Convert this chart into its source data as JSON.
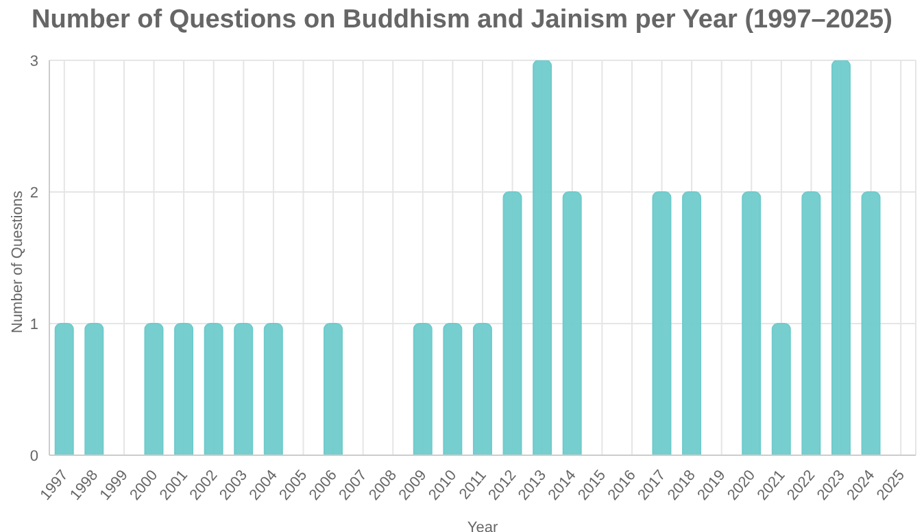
{
  "chart_data": {
    "type": "bar",
    "title": "Number of Questions on Buddhism and Jainism per Year (1997–2025)",
    "xlabel": "Year",
    "ylabel": "Number of Questions",
    "categories": [
      "1997",
      "1998",
      "1999",
      "2000",
      "2001",
      "2002",
      "2003",
      "2004",
      "2005",
      "2006",
      "2007",
      "2008",
      "2009",
      "2010",
      "2011",
      "2012",
      "2013",
      "2014",
      "2015",
      "2016",
      "2017",
      "2018",
      "2019",
      "2020",
      "2021",
      "2022",
      "2023",
      "2024",
      "2025"
    ],
    "values": [
      1,
      1,
      0,
      1,
      1,
      1,
      1,
      1,
      0,
      1,
      0,
      0,
      1,
      1,
      1,
      2,
      3,
      2,
      0,
      0,
      2,
      2,
      0,
      2,
      1,
      2,
      3,
      2,
      0
    ],
    "color": "#6fcbcc",
    "ylim": [
      0,
      3
    ],
    "yticks": [
      0,
      1,
      2,
      3
    ],
    "grid": true
  }
}
